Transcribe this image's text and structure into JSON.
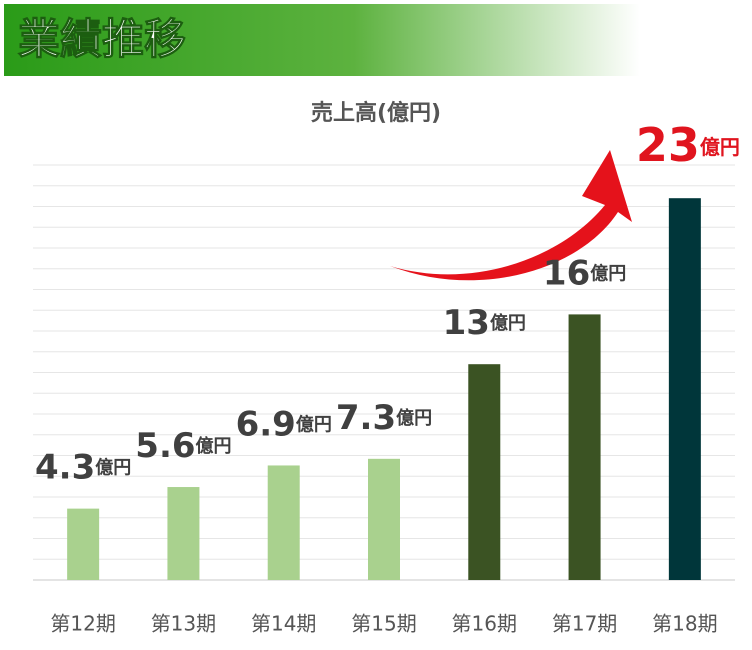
{
  "header": {
    "title": "業績推移"
  },
  "chart_data": {
    "type": "bar",
    "title": "売上高(億円)",
    "categories": [
      "第12期",
      "第13期",
      "第14期",
      "第15期",
      "第16期",
      "第17期",
      "第18期"
    ],
    "values": [
      4.3,
      5.6,
      6.9,
      7.3,
      13,
      16,
      23
    ],
    "value_labels": [
      "4.3億円",
      "5.6億円",
      "6.9億円",
      "7.3億円",
      "13億円",
      "16億円",
      "23億円"
    ],
    "colors": [
      "#a9d18e",
      "#a9d18e",
      "#a9d18e",
      "#a9d18e",
      "#3b5323",
      "#3b5323",
      "#00363a"
    ],
    "label_colors": [
      "#404040",
      "#404040",
      "#404040",
      "#404040",
      "#404040",
      "#404040",
      "#e0141e"
    ],
    "ylim": [
      0,
      25
    ],
    "yticks": [
      0,
      1.25,
      2.5,
      3.75,
      5,
      6.25,
      7.5,
      8.75,
      10,
      11.25,
      12.5,
      13.75,
      15,
      16.25,
      17.5,
      18.75,
      20,
      21.25,
      22.5,
      23.75,
      25
    ],
    "grid": true
  }
}
